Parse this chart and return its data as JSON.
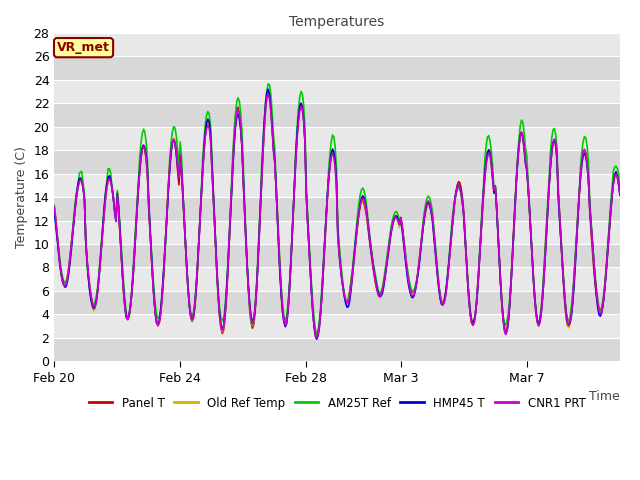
{
  "title": "Temperatures",
  "ylabel": "Temperature (C)",
  "xlabel": "Time",
  "ylim": [
    0,
    28
  ],
  "yticks": [
    0,
    2,
    4,
    6,
    8,
    10,
    12,
    14,
    16,
    18,
    20,
    22,
    24,
    26,
    28
  ],
  "bg_color": "#ffffff",
  "plot_bg": "#e8e8e8",
  "grid_color": "#ffffff",
  "annotation_text": "VR_met",
  "legend": [
    {
      "label": "Panel T",
      "color": "#cc0000",
      "lw": 1.2
    },
    {
      "label": "Old Ref Temp",
      "color": "#ddaa00",
      "lw": 1.2
    },
    {
      "label": "AM25T Ref",
      "color": "#00cc00",
      "lw": 1.2
    },
    {
      "label": "HMP45 T",
      "color": "#0000dd",
      "lw": 1.2
    },
    {
      "label": "CNR1 PRT",
      "color": "#cc00cc",
      "lw": 1.2
    }
  ],
  "xtick_labels": [
    "Feb 20",
    "Feb 24",
    "Feb 28",
    "Mar 3",
    "Mar 7"
  ],
  "xtick_positions": [
    0,
    96,
    192,
    264,
    360
  ],
  "n_points": 432,
  "title_fontsize": 10,
  "tick_fontsize": 9,
  "label_fontsize": 9,
  "figsize": [
    6.4,
    4.8
  ],
  "dpi": 100
}
